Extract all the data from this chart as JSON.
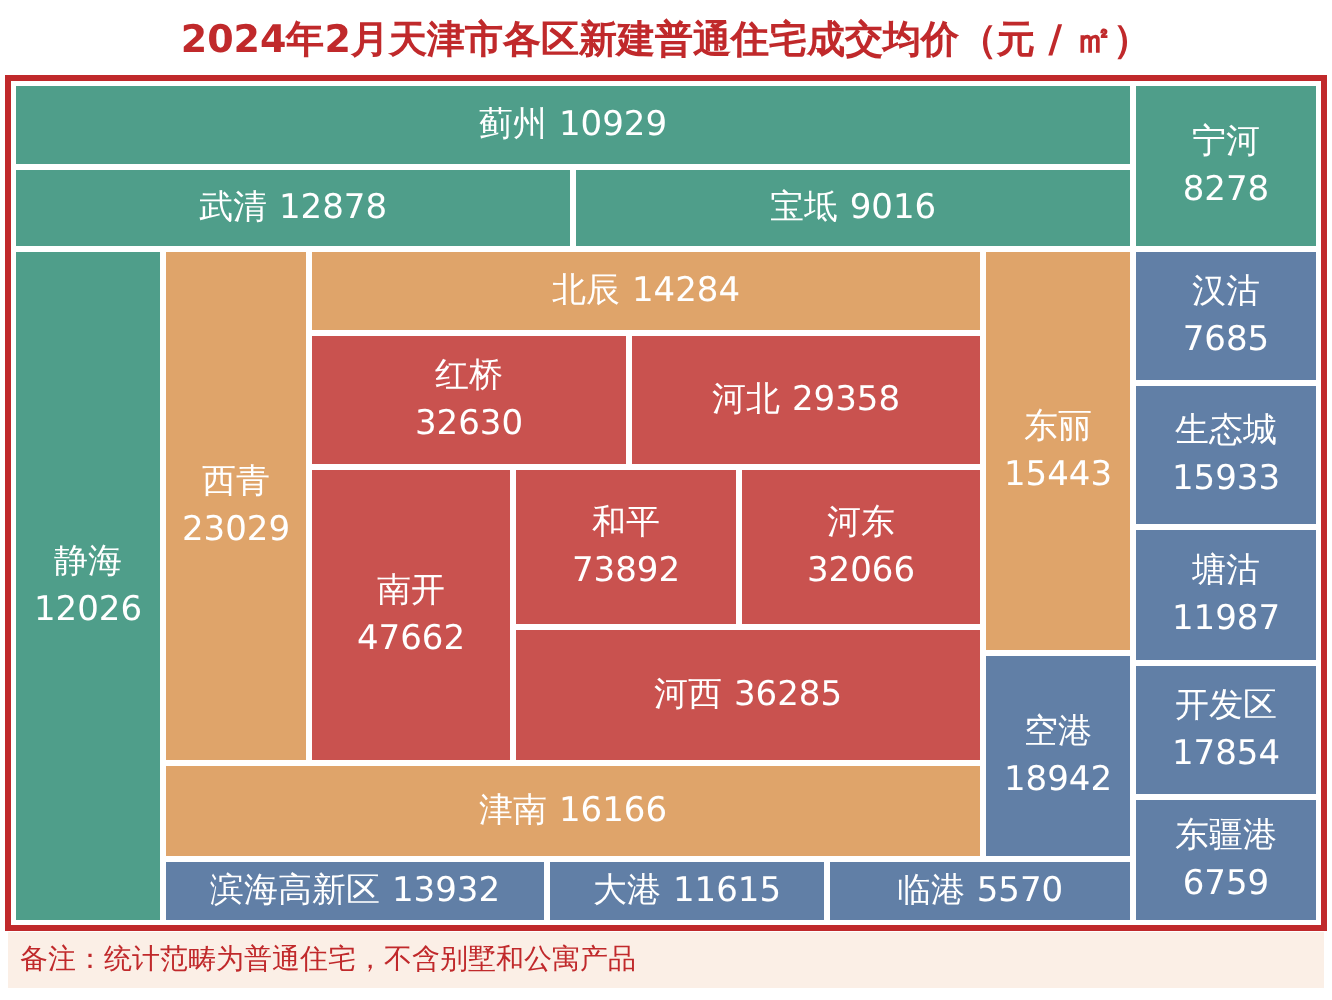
{
  "chart_data": {
    "type": "other",
    "title": "2024年2月天津市各区新建普通住宅成交均价（元 / ㎡）",
    "categories": [
      "蓟州",
      "宁河",
      "武清",
      "宝坻",
      "静海",
      "西青",
      "北辰",
      "红桥",
      "河北",
      "南开",
      "和平",
      "河东",
      "河西",
      "东丽",
      "空港",
      "津南",
      "汉沽",
      "生态城",
      "塘沽",
      "开发区",
      "东疆港",
      "滨海高新区",
      "大港",
      "临港"
    ],
    "values": [
      10929,
      8278,
      12878,
      9016,
      12026,
      23029,
      14284,
      32630,
      29358,
      47662,
      73892,
      32066,
      36285,
      15443,
      18942,
      16166,
      7685,
      15933,
      11987,
      17854,
      6759,
      13932,
      11615,
      5570
    ],
    "data_labels": true,
    "colors": [
      "#4f9e8a",
      "#4f9e8a",
      "#4f9e8a",
      "#4f9e8a",
      "#4f9e8a",
      "#dfa46a",
      "#dfa46a",
      "#c9524f",
      "#c9524f",
      "#c9524f",
      "#c9524f",
      "#c9524f",
      "#c9524f",
      "#dfa46a",
      "#617fa6",
      "#dfa46a",
      "#617fa6",
      "#617fa6",
      "#617fa6",
      "#617fa6",
      "#617fa6",
      "#617fa6",
      "#617fa6",
      "#617fa6"
    ],
    "annotations": [
      "备注：统计范畴为普通住宅，不含别墅和公寓产品"
    ]
  }
}
